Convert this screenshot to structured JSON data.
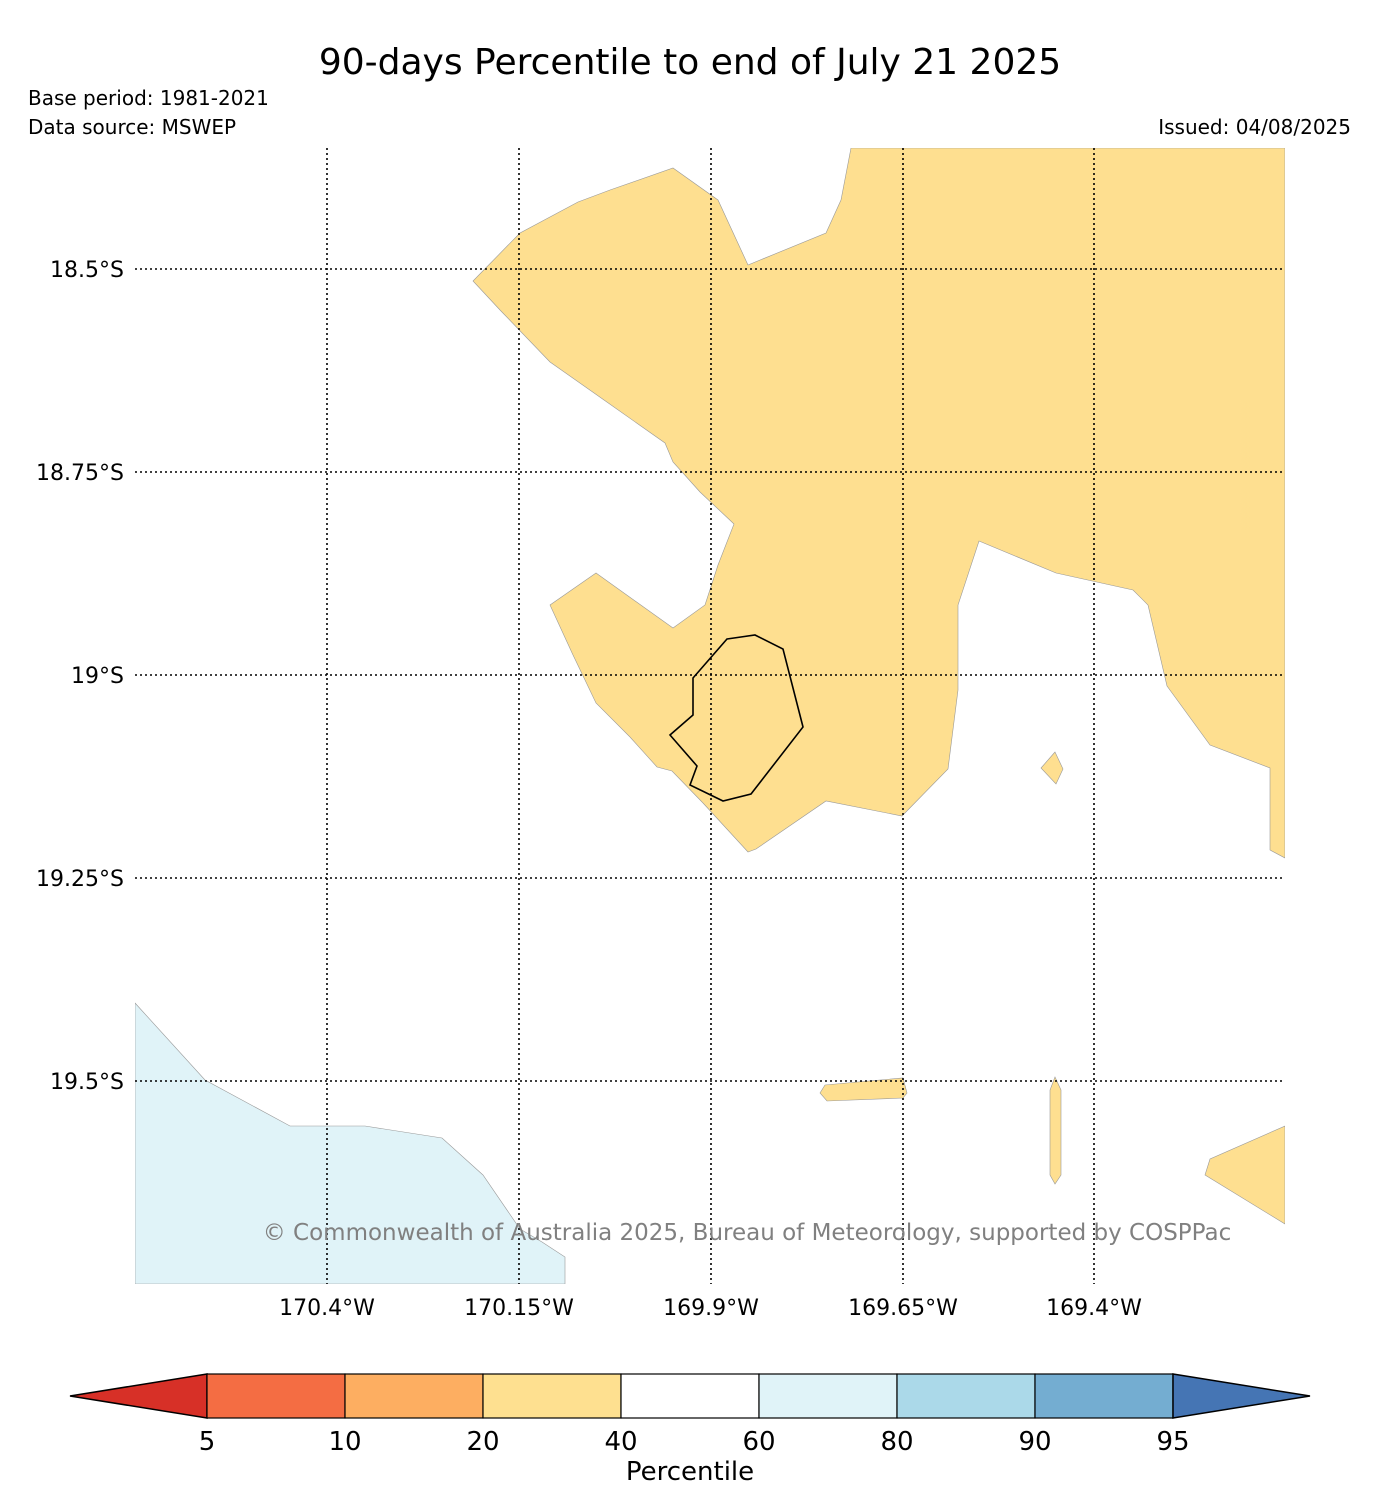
{
  "header": {
    "title": "90-days Percentile to end of July 21 2025",
    "base_period": "Base period: 1981-2021",
    "data_source": "Data source: MSWEP",
    "issued": "Issued: 04/08/2025"
  },
  "map": {
    "lat_labels": [
      "18.5°S",
      "18.75°S",
      "19°S",
      "19.25°S",
      "19.5°S"
    ],
    "lon_labels": [
      "170.4°W",
      "170.15°W",
      "169.9°W",
      "169.65°W",
      "169.4°W"
    ],
    "copyright": "© Commonwealth of Australia 2025, Bureau of Meteorology, supported by COSPPac",
    "colors": {
      "p20_40": "#fedf90",
      "p60_80": "#e0f3f8"
    }
  },
  "colorbar": {
    "label": "Percentile",
    "ticks": [
      "5",
      "10",
      "20",
      "40",
      "60",
      "80",
      "90",
      "95"
    ],
    "colors": [
      "#d73027",
      "#f46d43",
      "#fdae61",
      "#fee090",
      "#ffffff",
      "#e0f3f8",
      "#abd9e9",
      "#74add1",
      "#4575b4"
    ]
  }
}
